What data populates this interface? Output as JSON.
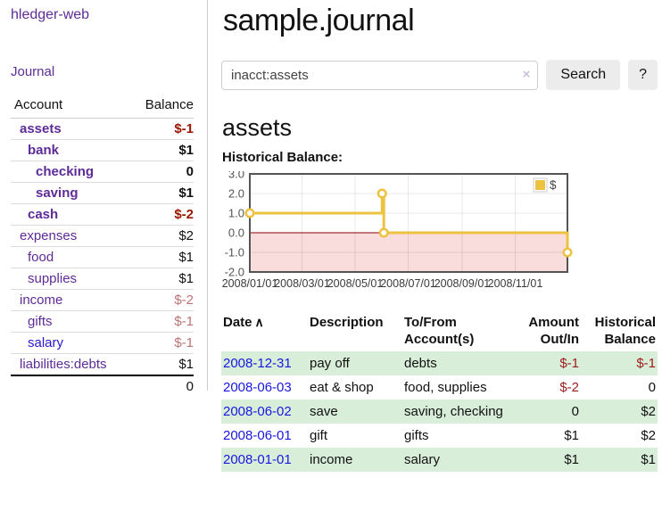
{
  "app": {
    "title": "hledger-web"
  },
  "sidebar": {
    "journal_link": "Journal",
    "table": {
      "account_header": "Account",
      "balance_header": "Balance",
      "rows": [
        {
          "name": "assets",
          "indent": 0,
          "in_account": true,
          "balance": {
            "text": "$-1",
            "negative": "strong"
          }
        },
        {
          "name": "bank",
          "indent": 1,
          "in_account": true,
          "balance": {
            "text": "$1",
            "negative": null
          }
        },
        {
          "name": "checking",
          "indent": 2,
          "in_account": true,
          "balance": {
            "text": "0",
            "negative": null
          }
        },
        {
          "name": "saving",
          "indent": 2,
          "in_account": true,
          "balance": {
            "text": "$1",
            "negative": null
          }
        },
        {
          "name": "cash",
          "indent": 1,
          "in_account": true,
          "balance": {
            "text": "$-2",
            "negative": "strong"
          }
        },
        {
          "name": "expenses",
          "indent": 0,
          "in_account": false,
          "balance": {
            "text": "$2",
            "negative": null
          }
        },
        {
          "name": "food",
          "indent": 1,
          "in_account": false,
          "balance": {
            "text": "$1",
            "negative": null
          }
        },
        {
          "name": "supplies",
          "indent": 1,
          "in_account": false,
          "balance": {
            "text": "$1",
            "negative": null
          }
        },
        {
          "name": "income",
          "indent": 0,
          "in_account": false,
          "balance": {
            "text": "$-2",
            "negative": "soft"
          }
        },
        {
          "name": "gifts",
          "indent": 1,
          "in_account": false,
          "balance": {
            "text": "$-1",
            "negative": "soft"
          }
        },
        {
          "name": "salary",
          "indent": 1,
          "in_account": false,
          "balance": {
            "text": "$-1",
            "negative": "soft"
          },
          "link_style": "unvisited"
        },
        {
          "name": "liabilities:debts",
          "indent": 0,
          "in_account": false,
          "balance": {
            "text": "$1",
            "negative": null
          }
        }
      ],
      "total": "0"
    }
  },
  "main": {
    "title": "sample.journal",
    "search": {
      "value": "inacct:assets",
      "clear_icon": "×",
      "button_label": "Search",
      "help_label": "?"
    },
    "account_heading": "assets",
    "chart_label": "Historical Balance:"
  },
  "chart_data": {
    "type": "line",
    "step": true,
    "title": "Historical Balance:",
    "series": [
      {
        "name": "$",
        "color": "#edc240",
        "points": [
          {
            "date": "2008-01-01",
            "value": 1
          },
          {
            "date": "2008-06-01",
            "value": 2
          },
          {
            "date": "2008-06-03",
            "value": 0
          },
          {
            "date": "2008-12-31",
            "value": -1
          }
        ]
      }
    ],
    "xrange": [
      "2008-01-01",
      "2008-12-31"
    ],
    "ylim": [
      -2,
      3
    ],
    "ytick_labels": [
      "3.0",
      "2.0",
      "1.0",
      "0.0",
      "-1.0",
      "-2.0"
    ],
    "xtick_labels": [
      "2008/01/01",
      "2008/03/01",
      "2008/05/01",
      "2008/07/01",
      "2008/09/01",
      "2008/11/01"
    ],
    "xtick_dates": [
      "2008-01-01",
      "2008-03-01",
      "2008-05-01",
      "2008-07-01",
      "2008-09-01",
      "2008-11-01"
    ],
    "legend": {
      "label": "$",
      "position": "top-right"
    },
    "grid": true,
    "negative_region_fill": "#f9dcdc",
    "zero_line_color": "#8b0000"
  },
  "register": {
    "sort_asc_icon": "∧",
    "columns": [
      "Date",
      "Description",
      "To/From Account(s)",
      "Amount Out/In",
      "Historical Balance"
    ],
    "rows": [
      {
        "date": "2008-12-31",
        "description": "pay off",
        "accounts": "debts",
        "amount": {
          "text": "$-1",
          "negative": true
        },
        "balance": {
          "text": "$-1",
          "negative": true
        }
      },
      {
        "date": "2008-06-03",
        "description": "eat & shop",
        "accounts": "food, supplies",
        "amount": {
          "text": "$-2",
          "negative": true
        },
        "balance": {
          "text": "0",
          "negative": false
        }
      },
      {
        "date": "2008-06-02",
        "description": "save",
        "accounts": "saving, checking",
        "amount": {
          "text": "0",
          "negative": false
        },
        "balance": {
          "text": "$2",
          "negative": false
        }
      },
      {
        "date": "2008-06-01",
        "description": "gift",
        "accounts": "gifts",
        "amount": {
          "text": "$1",
          "negative": false
        },
        "balance": {
          "text": "$2",
          "negative": false
        }
      },
      {
        "date": "2008-01-01",
        "description": "income",
        "accounts": "salary",
        "amount": {
          "text": "$1",
          "negative": false
        },
        "balance": {
          "text": "$1",
          "negative": false
        }
      }
    ]
  }
}
